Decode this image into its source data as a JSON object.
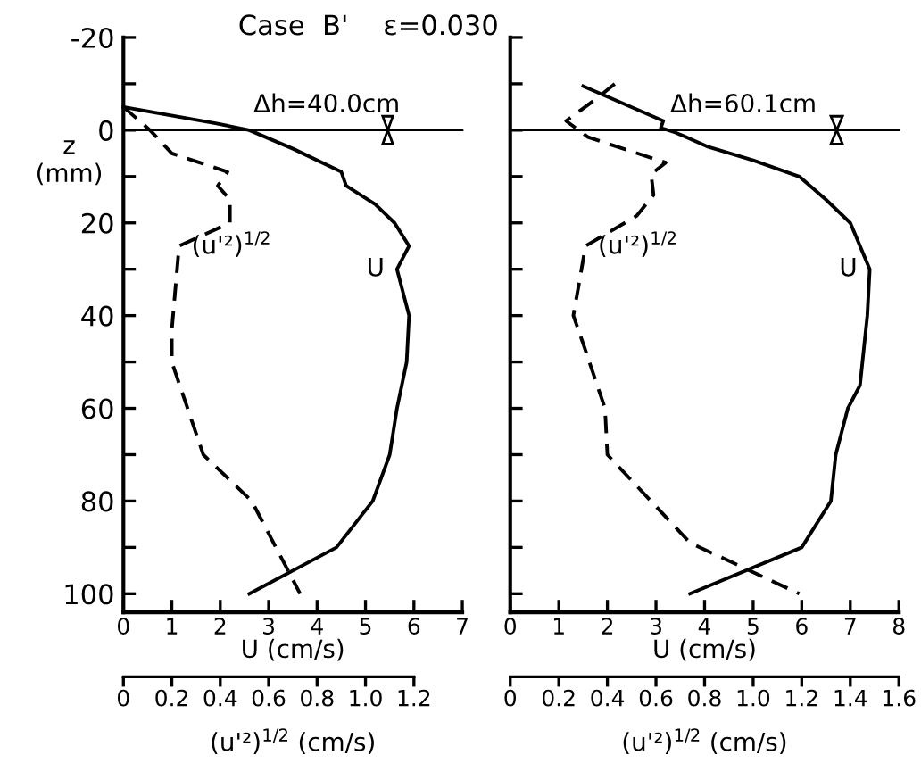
{
  "chart_data": [
    {
      "type": "line",
      "title": "Case  B'    ε=0.030",
      "ylabel": "z\n(mm)",
      "xlabel": "U (cm/s)",
      "x2label": "(u'²)$^{1/2}$ (cm/s)",
      "annotations": [
        "Δh=40.0cm"
      ],
      "xlim": [
        0,
        7
      ],
      "xticks": [
        0,
        1,
        2,
        3,
        4,
        5,
        6,
        7
      ],
      "x2lim": [
        0,
        1.2
      ],
      "x2ticks": [
        0,
        0.2,
        0.4,
        0.6,
        0.8,
        {
          "value": 1,
          "label": "1.0"
        },
        1.2
      ],
      "ylim": [
        104,
        -20
      ],
      "yticks": [
        -20,
        {
          "value": -10,
          "label": null
        },
        0,
        {
          "value": 10,
          "label": null
        },
        20,
        {
          "value": 30,
          "label": null
        },
        40,
        {
          "value": 50,
          "label": null
        },
        60,
        {
          "value": 70,
          "label": null
        },
        80,
        {
          "value": 90,
          "label": null
        },
        100
      ],
      "grid": false,
      "ref_lines": [
        {
          "axis": "y",
          "value": 0,
          "color": "#000000"
        }
      ],
      "series": [
        {
          "name": "(u'²)$^{1/2}$",
          "color": "#000000",
          "line_style": "dashed",
          "axis": "x2",
          "x": [
            0,
            0.11,
            0.2,
            0.43,
            0.39,
            0.44,
            0.44,
            0.23,
            0.2,
            0.2,
            0.33,
            0.53,
            0.73
          ],
          "values": [
            -5,
            0,
            5,
            9,
            12,
            15,
            20,
            25,
            43,
            50,
            70,
            80,
            100
          ]
        },
        {
          "name": "U",
          "color": "#000000",
          "line_style": "solid",
          "x": [
            0,
            1.9,
            2.6,
            3.5,
            4.5,
            4.6,
            5.2,
            5.6,
            5.9,
            5.65,
            5.9,
            5.85,
            5.65,
            5.5,
            5.15,
            4.4,
            2.6
          ],
          "values": [
            -5,
            -1.5,
            0,
            4,
            9,
            12,
            16,
            20,
            25,
            30,
            40,
            50,
            60,
            70,
            80,
            90,
            100
          ]
        }
      ]
    },
    {
      "type": "line",
      "xlabel": "U (cm/s)",
      "x2label": "(u'²)$^{1/2}$ (cm/s)",
      "annotations": [
        "Δh=60.1cm"
      ],
      "tick_labels": "x",
      "xlim": [
        0,
        8
      ],
      "xticks": [
        0,
        1,
        2,
        3,
        4,
        5,
        6,
        7,
        8
      ],
      "x2lim": [
        0,
        1.6
      ],
      "x2ticks": [
        0,
        0.2,
        0.4,
        0.6,
        0.8,
        {
          "value": 1,
          "label": "1.0"
        },
        1.2,
        1.4,
        1.6
      ],
      "ylim": [
        104,
        -20
      ],
      "yticks": [
        -20,
        {
          "value": -10,
          "label": null
        },
        0,
        {
          "value": 10,
          "label": null
        },
        20,
        {
          "value": 30,
          "label": null
        },
        40,
        {
          "value": 50,
          "label": null
        },
        60,
        {
          "value": 70,
          "label": null
        },
        80,
        {
          "value": 90,
          "label": null
        },
        100
      ],
      "grid": false,
      "ref_lines": [
        {
          "axis": "y",
          "value": 0,
          "color": "#000000"
        }
      ],
      "series": [
        {
          "name": "(u'²)$^{1/2}$",
          "color": "#000000",
          "line_style": "dashed",
          "axis": "x2",
          "x": [
            0.43,
            0.36,
            0.23,
            0.32,
            0.64,
            0.58,
            0.59,
            0.52,
            0.31,
            0.26,
            0.3,
            0.39,
            0.4,
            0.74,
            1.19
          ],
          "values": [
            -10,
            -7,
            -2,
            1.5,
            7,
            9.5,
            14,
            18.5,
            25,
            40,
            46,
            60,
            70,
            89,
            100
          ]
        },
        {
          "name": "U",
          "color": "#000000",
          "line_style": "solid",
          "x": [
            1.5,
            3.15,
            3.1,
            3.4,
            4.05,
            5.0,
            5.95,
            6.5,
            7.0,
            7.4,
            7.35,
            7.25,
            7.2,
            6.95,
            6.7,
            6.6,
            6.0,
            3.7
          ],
          "values": [
            -9.5,
            -2,
            -0.5,
            0.5,
            3.5,
            6.5,
            10,
            15,
            20,
            30,
            40,
            50,
            55,
            60,
            70,
            80,
            90,
            100
          ]
        }
      ]
    }
  ]
}
